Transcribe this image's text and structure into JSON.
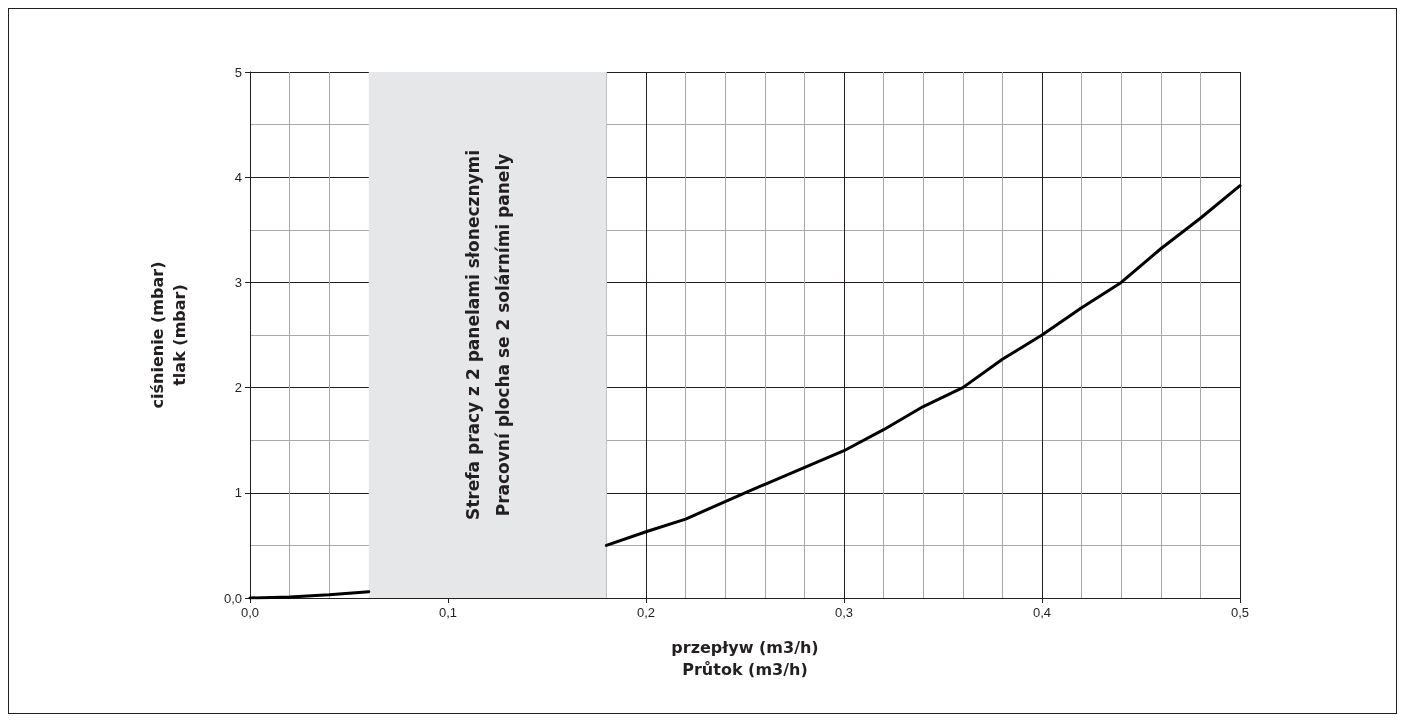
{
  "chart_data": {
    "type": "line",
    "xlabel": "przepływ (m3/h)\nPrůtok (m3/h)",
    "ylabel": "ciśnienie (mbar)\ntlak (mbar)",
    "x": [
      0,
      0.02,
      0.04,
      0.06,
      0.08,
      0.16,
      0.18,
      0.2,
      0.22,
      0.25,
      0.3,
      0.32,
      0.34,
      0.36,
      0.38,
      0.4,
      0.42,
      0.44,
      0.46,
      0.48,
      0.5
    ],
    "series": [
      {
        "color": "#000000",
        "values": [
          0,
          0.01,
          0.03,
          0.06,
          null,
          null,
          0.5,
          0.63,
          0.75,
          1.0,
          1.4,
          1.6,
          1.82,
          2.0,
          2.27,
          2.5,
          2.76,
          3.0,
          3.32,
          3.61,
          3.92
        ]
      }
    ],
    "xlim": [
      0,
      0.5
    ],
    "ylim": [
      0,
      5
    ],
    "xticks": [
      {
        "value": 0,
        "label": "0,0"
      },
      {
        "value": 0.1,
        "label": "0,1"
      },
      {
        "value": 0.2,
        "label": "0,2"
      },
      {
        "value": 0.3,
        "label": "0,3"
      },
      {
        "value": 0.4,
        "label": "0,4"
      },
      {
        "value": 0.5,
        "label": "0,5"
      }
    ],
    "yticks": [
      {
        "value": 0,
        "label": "0,0"
      },
      1,
      2,
      3,
      4,
      5
    ],
    "bands": [
      {
        "axis": "x",
        "from": 0.06,
        "to": 0.18,
        "label": "Strefa pracy z 2 panelami słonecznymi\nPracovní plocha se 2 solárními panely",
        "color": "#e6e7e8"
      }
    ],
    "grid": true,
    "marker": "none",
    "line_style": "solid"
  }
}
